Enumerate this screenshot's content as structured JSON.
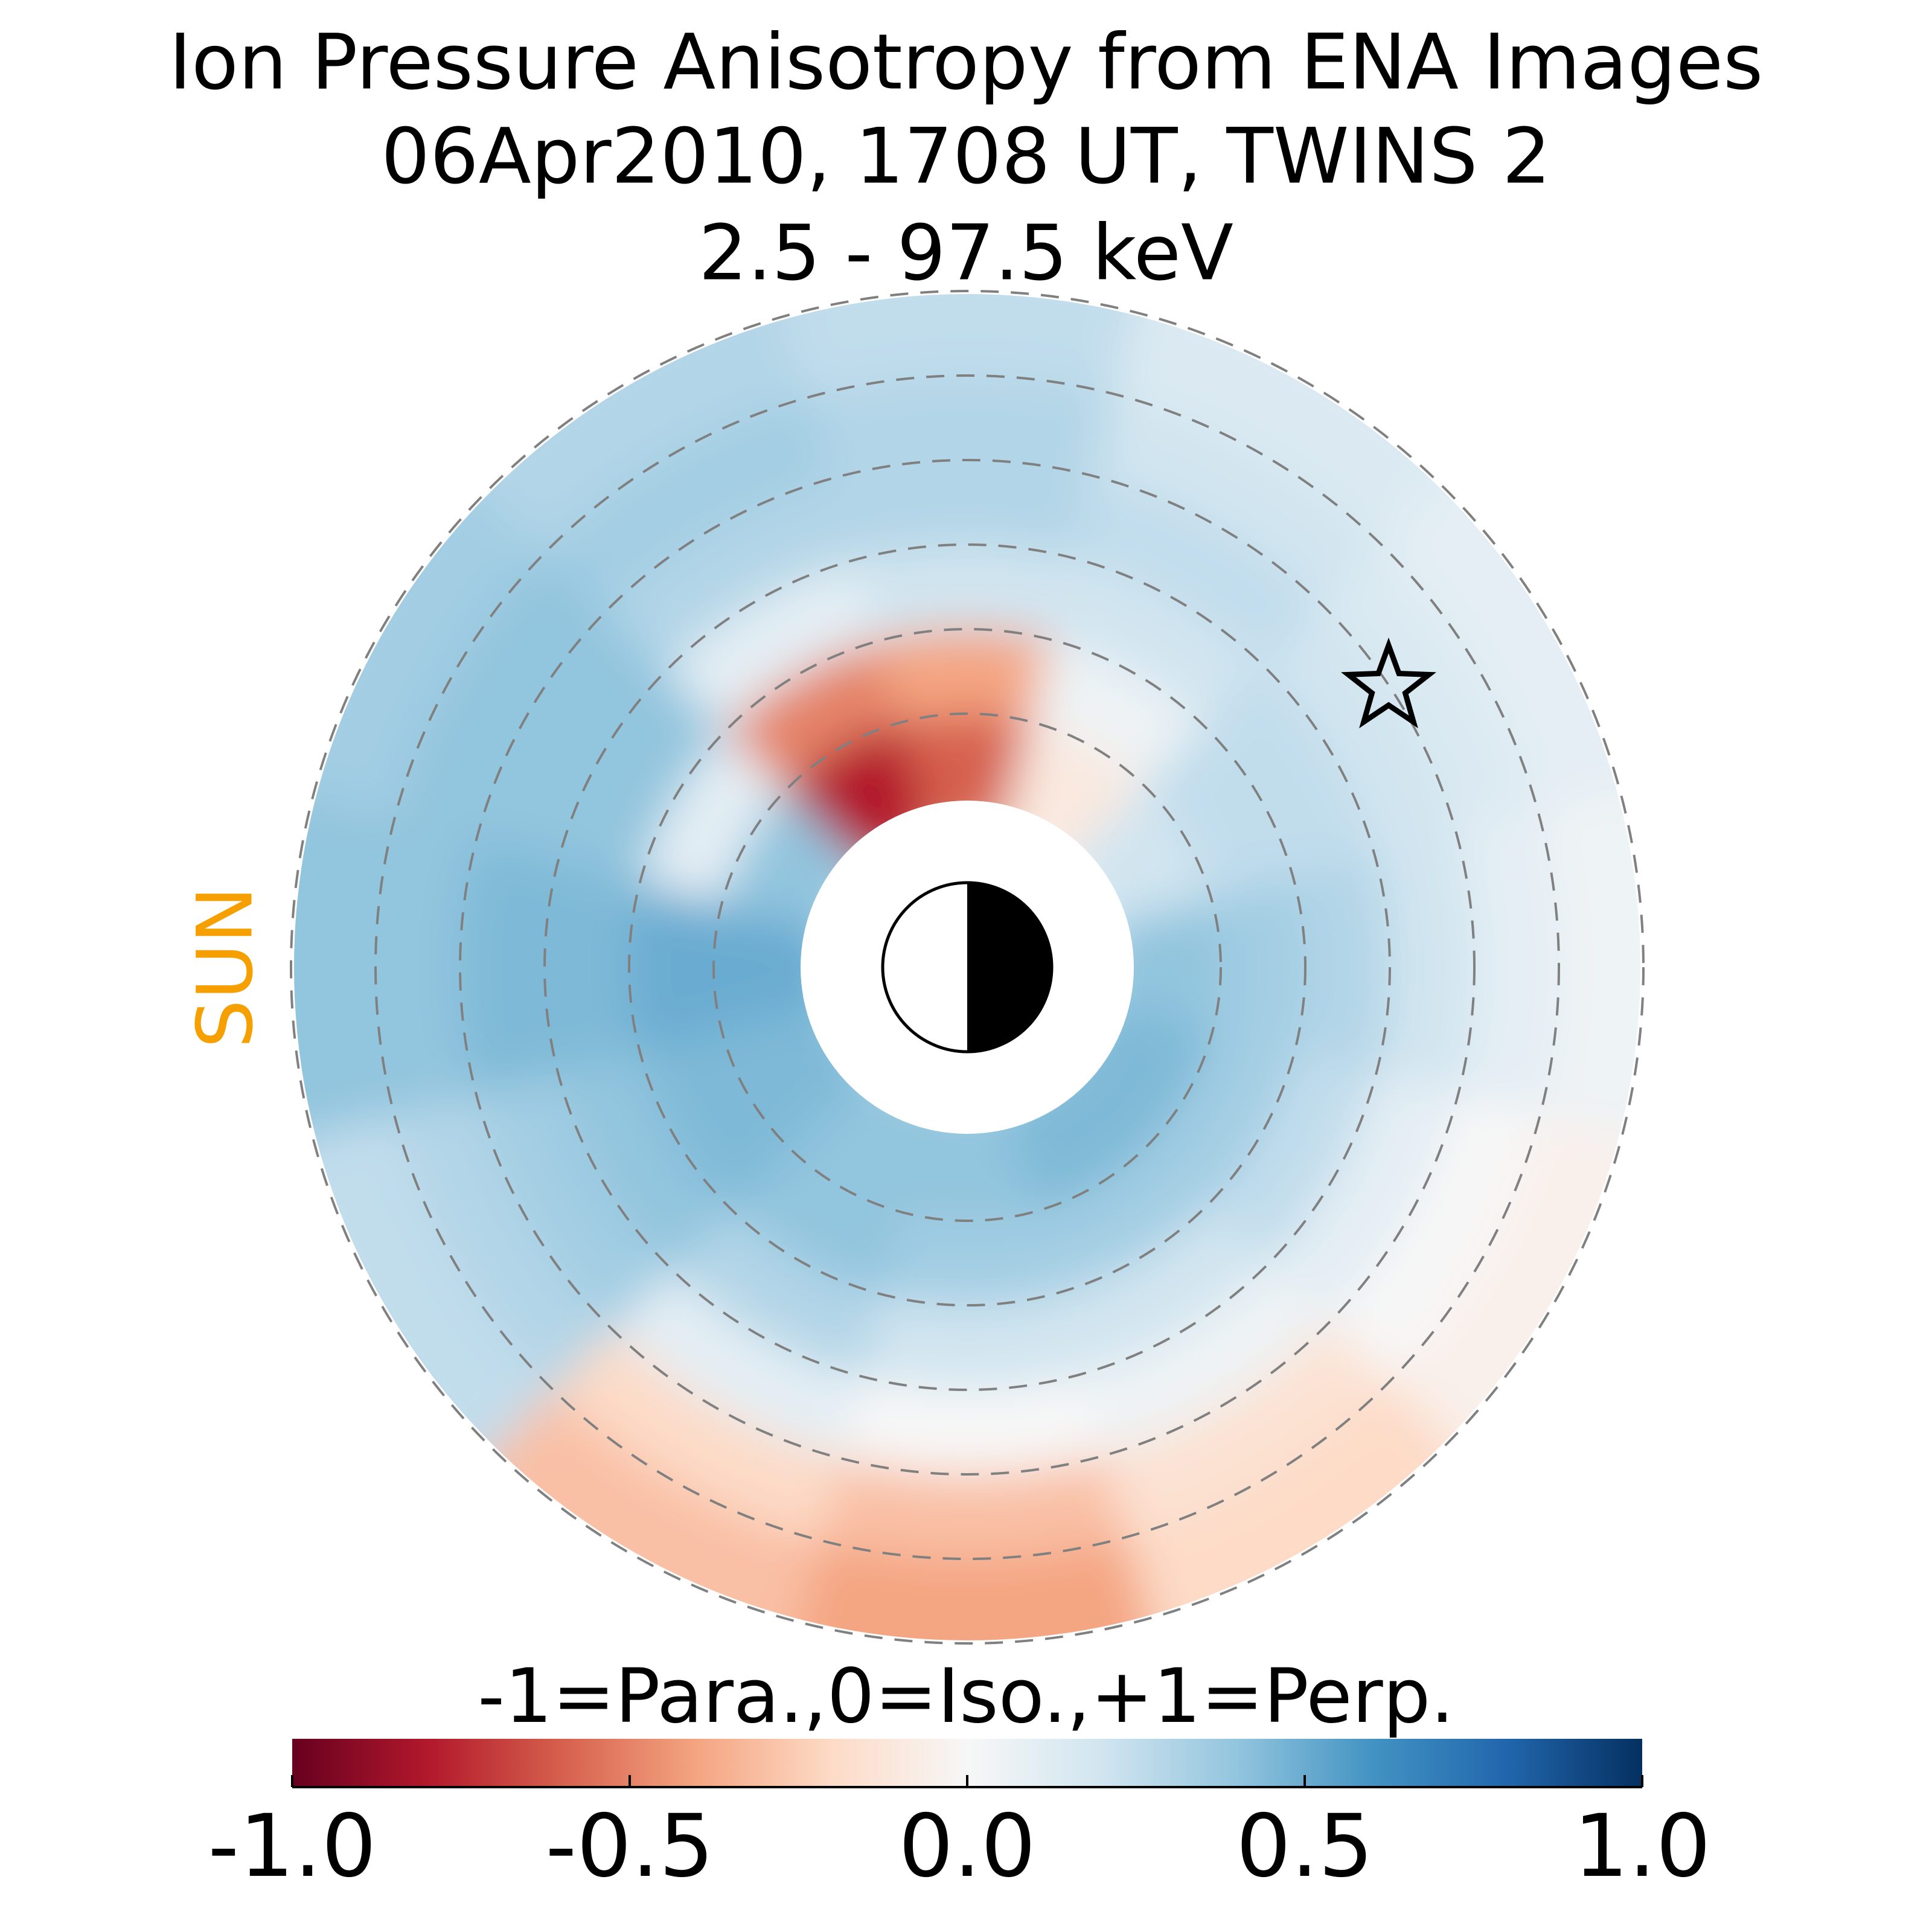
{
  "chart_data": {
    "type": "polar-heatmap",
    "title": [
      "Ion Pressure Anisotropy from  ENA Images",
      "06Apr2010, 1708 UT,  TWINS 2",
      "2.5 - 97.5 keV"
    ],
    "annotation": "SUN",
    "annotation_color": "#f5a000",
    "values": [
      [
        0.5,
        0.5,
        0.45,
        0.45,
        0.4,
        0.4
      ],
      [
        0.4,
        0.1,
        0.4,
        0.4,
        0.4,
        0.35
      ],
      [
        -0.8,
        -0.5,
        0.1,
        0.3,
        0.35,
        0.3
      ],
      [
        -0.6,
        -0.4,
        0.2,
        0.3,
        0.3,
        0.25
      ],
      [
        -0.1,
        0.05,
        0.2,
        0.25,
        0.2,
        0.15
      ],
      [
        0.2,
        0.25,
        0.25,
        0.2,
        0.15,
        0.1
      ],
      [
        0.4,
        0.35,
        0.3,
        0.2,
        0.1,
        0.05
      ],
      [
        0.45,
        0.35,
        0.25,
        0.1,
        0,
        -0.05
      ],
      [
        0.45,
        0.35,
        0.2,
        0.05,
        -0.15,
        -0.2
      ],
      [
        0.4,
        0.35,
        0.2,
        0,
        -0.3,
        -0.4
      ],
      [
        0.4,
        0.4,
        0.3,
        0.1,
        -0.2,
        -0.3
      ],
      [
        0.45,
        0.45,
        0.4,
        0.35,
        0.3,
        0.25
      ]
    ],
    "colorbar": {
      "label": "-1=Para.,0=Iso.,+1=Perp.",
      "cmap": "RdBu",
      "lim": [
        -1,
        1
      ],
      "ticks": [
        {
          "value": -1,
          "label": "-1.0"
        },
        {
          "value": -0.5,
          "label": "-0.5"
        },
        {
          "value": 0,
          "label": "0.0"
        },
        {
          "value": 0.5,
          "label": "0.5"
        },
        {
          "value": 1,
          "label": "1.0"
        }
      ]
    }
  }
}
